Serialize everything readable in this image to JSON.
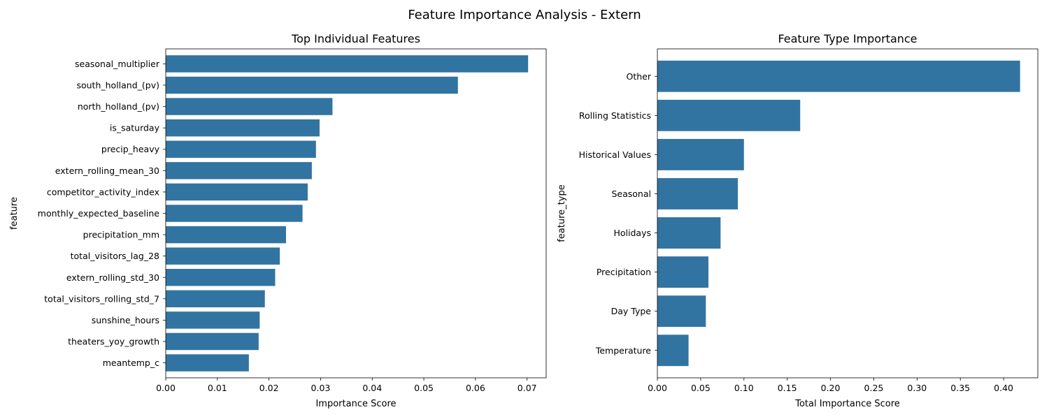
{
  "figure": {
    "title": "Feature Importance Analysis - Extern"
  },
  "chart_data": [
    {
      "type": "bar",
      "orientation": "horizontal",
      "title": "Top Individual Features",
      "xlabel": "Importance Score",
      "ylabel": "feature",
      "xlim": [
        0,
        0.0737
      ],
      "xticks": [
        "0.00",
        "0.01",
        "0.02",
        "0.03",
        "0.04",
        "0.05",
        "0.06",
        "0.07"
      ],
      "bar_color": "#3274a1",
      "grid": false,
      "categories": [
        "seasonal_multiplier",
        "south_holland_(pv)",
        "north_holland_(pv)",
        "is_saturday",
        "precip_heavy",
        "extern_rolling_mean_30",
        "competitor_activity_index",
        "monthly_expected_baseline",
        "precipitation_mm",
        "total_visitors_lag_28",
        "extern_rolling_std_30",
        "total_visitors_rolling_std_7",
        "sunshine_hours",
        "theaters_yoy_growth",
        "meantemp_c"
      ],
      "values": [
        0.0702,
        0.0566,
        0.0323,
        0.0298,
        0.0291,
        0.0283,
        0.0275,
        0.0265,
        0.0233,
        0.0221,
        0.0212,
        0.0192,
        0.0182,
        0.018,
        0.0161
      ]
    },
    {
      "type": "bar",
      "orientation": "horizontal",
      "title": "Feature Type Importance",
      "xlabel": "Total Importance Score",
      "ylabel": "feature_type",
      "xlim": [
        0,
        0.4395
      ],
      "xticks": [
        "0.00",
        "0.05",
        "0.10",
        "0.15",
        "0.20",
        "0.25",
        "0.30",
        "0.35",
        "0.40"
      ],
      "bar_color": "#3274a1",
      "grid": false,
      "categories": [
        "Other",
        "Rolling Statistics",
        "Historical Values",
        "Seasonal",
        "Holidays",
        "Precipitation",
        "Day Type",
        "Temperature"
      ],
      "values": [
        0.419,
        0.165,
        0.1,
        0.093,
        0.073,
        0.059,
        0.056,
        0.036
      ]
    }
  ]
}
